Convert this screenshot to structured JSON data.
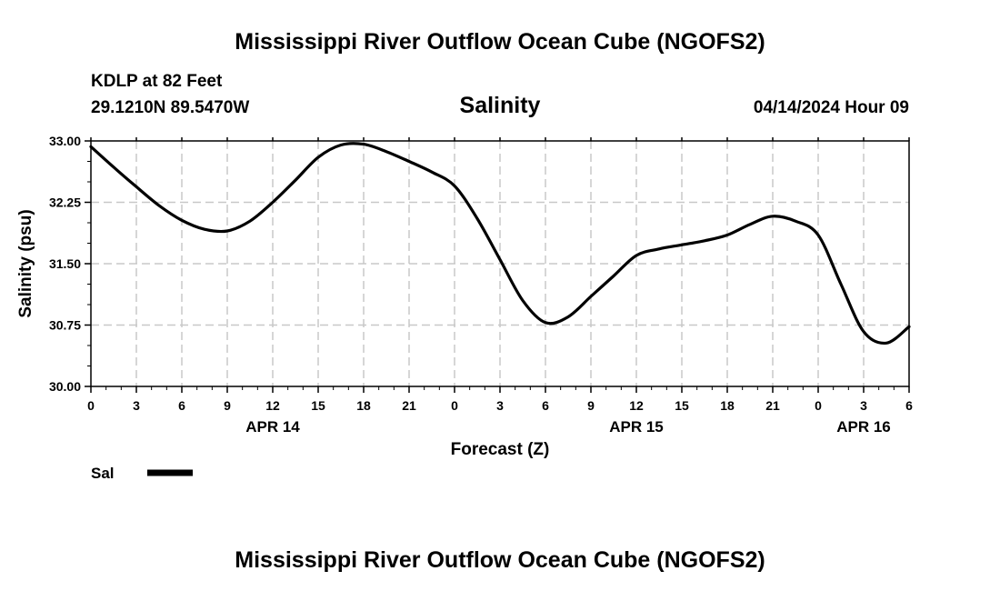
{
  "header": {
    "title": "Mississippi River Outflow Ocean Cube (NGOFS2)",
    "station": "KDLP at 82 Feet",
    "coords": "29.1210N  89.5470W",
    "datetime": "04/14/2024 Hour 09"
  },
  "footer": {
    "title": "Mississippi River Outflow Ocean Cube (NGOFS2)"
  },
  "legend": {
    "label": "Sal"
  },
  "colors": {
    "line": "#000000",
    "grid": "#c8c8c8",
    "background": "#ffffff"
  },
  "chart_data": {
    "type": "line",
    "title": "Salinity",
    "xlabel": "Forecast (Z)",
    "ylabel": "Salinity (psu)",
    "xlim": [
      0,
      54
    ],
    "ylim": [
      30.0,
      33.0
    ],
    "yticks": [
      "30.00",
      "30.75",
      "31.50",
      "32.25",
      "33.00"
    ],
    "xticks": [
      "0",
      "3",
      "6",
      "9",
      "12",
      "15",
      "18",
      "21",
      "0",
      "3",
      "6",
      "9",
      "12",
      "15",
      "18",
      "21",
      "0",
      "3",
      "6"
    ],
    "date_labels": [
      {
        "label": "APR 14",
        "hour": 12
      },
      {
        "label": "APR 15",
        "hour": 36
      },
      {
        "label": "APR 16",
        "hour": 51
      }
    ],
    "grid": true,
    "series": [
      {
        "name": "Sal",
        "x": [
          0,
          1.5,
          3,
          4.5,
          6,
          7.5,
          9,
          10.5,
          12,
          13.5,
          15,
          16.5,
          18,
          19.5,
          21,
          22.5,
          24,
          25.5,
          27,
          28.5,
          30,
          31.5,
          33,
          34.5,
          36,
          37.5,
          39,
          40.5,
          42,
          43.5,
          45,
          46.5,
          48,
          49.5,
          51,
          52.5,
          54
        ],
        "values": [
          32.93,
          32.68,
          32.44,
          32.21,
          32.03,
          31.92,
          31.9,
          32.02,
          32.25,
          32.52,
          32.8,
          32.95,
          32.96,
          32.87,
          32.75,
          32.62,
          32.45,
          32.05,
          31.55,
          31.05,
          30.78,
          30.85,
          31.1,
          31.35,
          31.6,
          31.68,
          31.73,
          31.78,
          31.85,
          31.98,
          32.08,
          32.02,
          31.85,
          31.25,
          30.67,
          30.53,
          30.73
        ]
      }
    ]
  }
}
